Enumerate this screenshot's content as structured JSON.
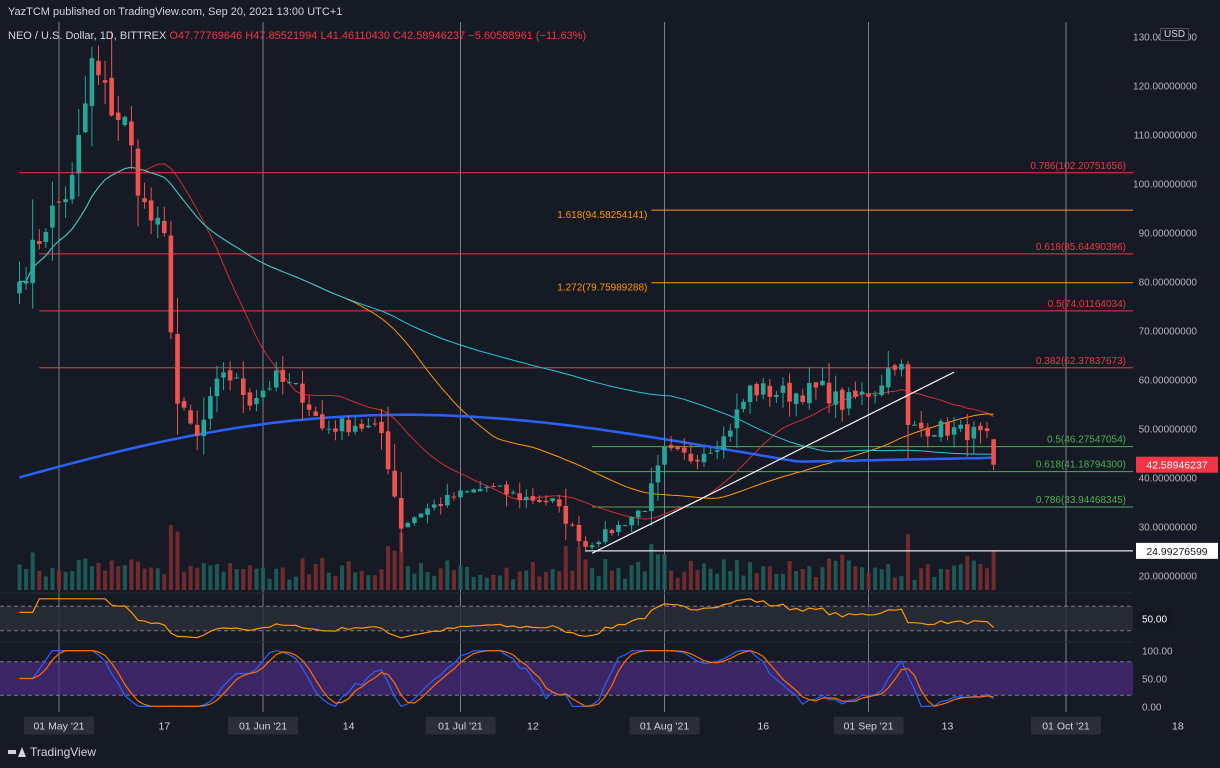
{
  "header": {
    "publisher": "YazTCM published on TradingView.com, Sep 20, 2021 13:00 UTC+1"
  },
  "symbol": {
    "name": "NEO / U.S. Dollar, 1D, BITTREX",
    "ohlc": "O47.77769646  H47.85521994  L41.46110430  C42.58946237  −5.60588961 (−11.63%)"
  },
  "currency_label": "USD",
  "footer": {
    "brand": "TradingView"
  },
  "colors": {
    "background": "#161a25",
    "up": "#26a69a",
    "down": "#ef5350",
    "sma_fast": "#d32f2f",
    "sma_mid": "#ff9800",
    "sma_slow": "#26c6da",
    "sma_200": "#2962ff",
    "fib_red": "#f23645",
    "fib_orange": "#ff9800",
    "fib_green": "#4caf50",
    "rsi": "#ff9800",
    "stoch_k": "#2962ff",
    "stoch_d": "#ff6d00"
  },
  "chart_data": {
    "type": "candlestick",
    "start_date": "2021-04-25",
    "ylim": [
      17,
      133
    ],
    "price_ticks": [
      130,
      120,
      110,
      100,
      90,
      80,
      70,
      60,
      50,
      40,
      30,
      20
    ],
    "price_tick_labels": [
      "130.00000000",
      "120.00000000",
      "110.00000000",
      "100.00000000",
      "90.00000000",
      "80.00000000",
      "70.00000000",
      "60.00000000",
      "50.00000000",
      "40.00000000",
      "30.00000000",
      "20.00000000"
    ],
    "current_price_label": "42.58946237",
    "support_label": "24.99276599",
    "x_ticks": [
      {
        "label": "01 May '21",
        "date": "2021-05-01",
        "boxed": true
      },
      {
        "label": "17",
        "date": "2021-05-17",
        "boxed": false
      },
      {
        "label": "01 Jun '21",
        "date": "2021-06-01",
        "boxed": true
      },
      {
        "label": "14",
        "date": "2021-06-14",
        "boxed": false
      },
      {
        "label": "01 Jul '21",
        "date": "2021-07-01",
        "boxed": true
      },
      {
        "label": "12",
        "date": "2021-07-12",
        "boxed": false
      },
      {
        "label": "01 Aug '21",
        "date": "2021-08-01",
        "boxed": true
      },
      {
        "label": "16",
        "date": "2021-08-16",
        "boxed": false
      },
      {
        "label": "01 Sep '21",
        "date": "2021-09-01",
        "boxed": true
      },
      {
        "label": "13",
        "date": "2021-09-13",
        "boxed": false
      },
      {
        "label": "01 Oct '21",
        "date": "2021-10-01",
        "boxed": true
      },
      {
        "label": "18",
        "date": "2021-10-18",
        "boxed": false
      }
    ],
    "fib_levels": [
      {
        "label": "0.786(102.20751656)",
        "price": 102.2075,
        "color": "red",
        "from": "2021-04-25",
        "label_side": "right"
      },
      {
        "label": "1.618(94.58254141)",
        "price": 94.5825,
        "color": "orange",
        "from": "2021-07-30",
        "label_side": "left"
      },
      {
        "label": "0.618(85.64490396)",
        "price": 85.6449,
        "color": "red",
        "from": "2021-04-28",
        "label_side": "right"
      },
      {
        "label": "1.272(79.75989288)",
        "price": 79.7599,
        "color": "orange",
        "from": "2021-07-30",
        "label_side": "left"
      },
      {
        "label": "0.5(74.01164034)",
        "price": 74.0116,
        "color": "red",
        "from": "2021-04-28",
        "label_side": "right"
      },
      {
        "label": "0.382(62.37837673)",
        "price": 62.3784,
        "color": "red",
        "from": "2021-04-28",
        "label_side": "right"
      },
      {
        "label": "0.5(46.27547054)",
        "price": 46.2755,
        "color": "green",
        "from": "2021-07-21",
        "label_side": "right"
      },
      {
        "label": "0.618(41.18794300)",
        "price": 41.1879,
        "color": "green",
        "from": "2021-07-21",
        "label_side": "right"
      },
      {
        "label": "0.786(33.94468345)",
        "price": 33.9447,
        "color": "green",
        "from": "2021-07-21",
        "label_side": "right"
      }
    ],
    "support_line": {
      "price": 24.9928,
      "from": "2021-07-20"
    },
    "trendline": {
      "from_date": "2021-07-21",
      "from_price": 24.5,
      "to_date": "2021-09-14",
      "to_price": 61.5
    },
    "close_anchors": [
      [
        "2021-04-25",
        80
      ],
      [
        "2021-04-29",
        92
      ],
      [
        "2021-05-03",
        100
      ],
      [
        "2021-05-06",
        124
      ],
      [
        "2021-05-08",
        118
      ],
      [
        "2021-05-11",
        112
      ],
      [
        "2021-05-14",
        95
      ],
      [
        "2021-05-17",
        88
      ],
      [
        "2021-05-19",
        55
      ],
      [
        "2021-05-22",
        48
      ],
      [
        "2021-05-26",
        62
      ],
      [
        "2021-05-30",
        56
      ],
      [
        "2021-06-03",
        60
      ],
      [
        "2021-06-07",
        57
      ],
      [
        "2021-06-10",
        50
      ],
      [
        "2021-06-15",
        51
      ],
      [
        "2021-06-19",
        49
      ],
      [
        "2021-06-22",
        30
      ],
      [
        "2021-06-25",
        33
      ],
      [
        "2021-06-30",
        36
      ],
      [
        "2021-07-05",
        38
      ],
      [
        "2021-07-10",
        36
      ],
      [
        "2021-07-15",
        35
      ],
      [
        "2021-07-20",
        26
      ],
      [
        "2021-07-25",
        30
      ],
      [
        "2021-07-29",
        34
      ],
      [
        "2021-08-01",
        45
      ],
      [
        "2021-08-05",
        44
      ],
      [
        "2021-08-10",
        48
      ],
      [
        "2021-08-14",
        58
      ],
      [
        "2021-08-20",
        57
      ],
      [
        "2021-08-25",
        58
      ],
      [
        "2021-08-28",
        55
      ],
      [
        "2021-09-02",
        58
      ],
      [
        "2021-09-05",
        64
      ],
      [
        "2021-09-06",
        62
      ],
      [
        "2021-09-07",
        50
      ],
      [
        "2021-09-12",
        50
      ],
      [
        "2021-09-17",
        49
      ],
      [
        "2021-09-19",
        47.8
      ],
      [
        "2021-09-20",
        42.59
      ]
    ],
    "volume_ylim": [
      0,
      14
    ],
    "rsi_ylim": [
      15,
      85
    ],
    "rsi_band": [
      30,
      70
    ],
    "rsi_tick_label": "50.00",
    "stoch_ylim": [
      -10,
      110
    ],
    "stoch_band": [
      20,
      80
    ],
    "stoch_tick_labels": [
      "100.00",
      "50.00",
      "0.00"
    ]
  }
}
